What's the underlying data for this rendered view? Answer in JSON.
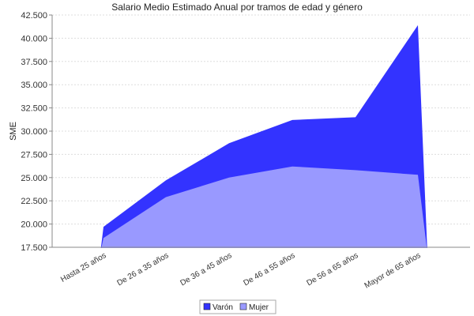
{
  "chart_data": {
    "type": "area",
    "title": "Salario Medio Estimado Anual por tramos de edad y género",
    "xlabel": "",
    "ylabel": "SME",
    "categories": [
      "Hasta 25  años",
      "De 26  a 35  años",
      "De 36  a 45  años",
      "De 46  a 55  años",
      "De 56  a 65  años",
      "Mayor de 65  años"
    ],
    "ylim": [
      17500,
      42500
    ],
    "yticks": [
      17500,
      20000,
      22500,
      25000,
      27500,
      30000,
      32500,
      35000,
      37500,
      40000,
      42500
    ],
    "ytick_labels": [
      "17.500",
      "20.000",
      "22.500",
      "25.000",
      "27.500",
      "30.000",
      "32.500",
      "35.000",
      "37.500",
      "40.000",
      "42.500"
    ],
    "grid": true,
    "legend_position": "bottom",
    "series": [
      {
        "name": "Varón",
        "color": "#3333ff",
        "values": [
          19700,
          24700,
          28700,
          31200,
          31500,
          41400
        ]
      },
      {
        "name": "Mujer",
        "color": "#9999ff",
        "values": [
          18500,
          22900,
          25000,
          26200,
          25800,
          25300
        ]
      }
    ]
  }
}
